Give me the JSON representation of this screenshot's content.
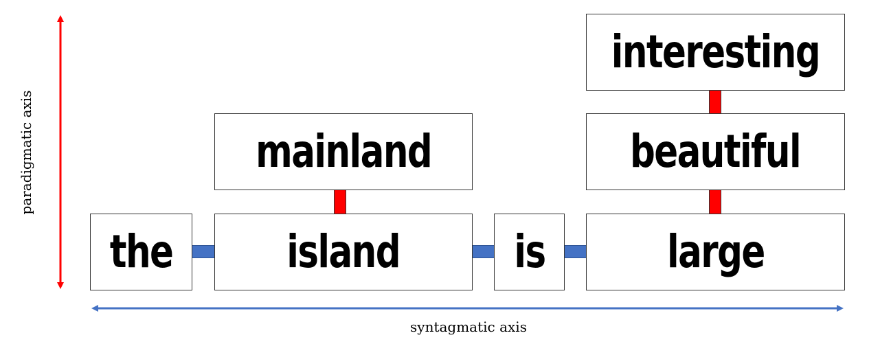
{
  "words": {
    "the": "the",
    "island": "island",
    "is": "is",
    "large": "large",
    "mainland": "mainland",
    "beautiful": "beautiful",
    "interesting": "interesting"
  },
  "axes": {
    "vertical_label": "paradigmatic axis",
    "horizontal_label": "syntagmatic axis"
  },
  "colors": {
    "syntagmatic": "#4472c4",
    "paradigmatic": "#ff0000"
  }
}
